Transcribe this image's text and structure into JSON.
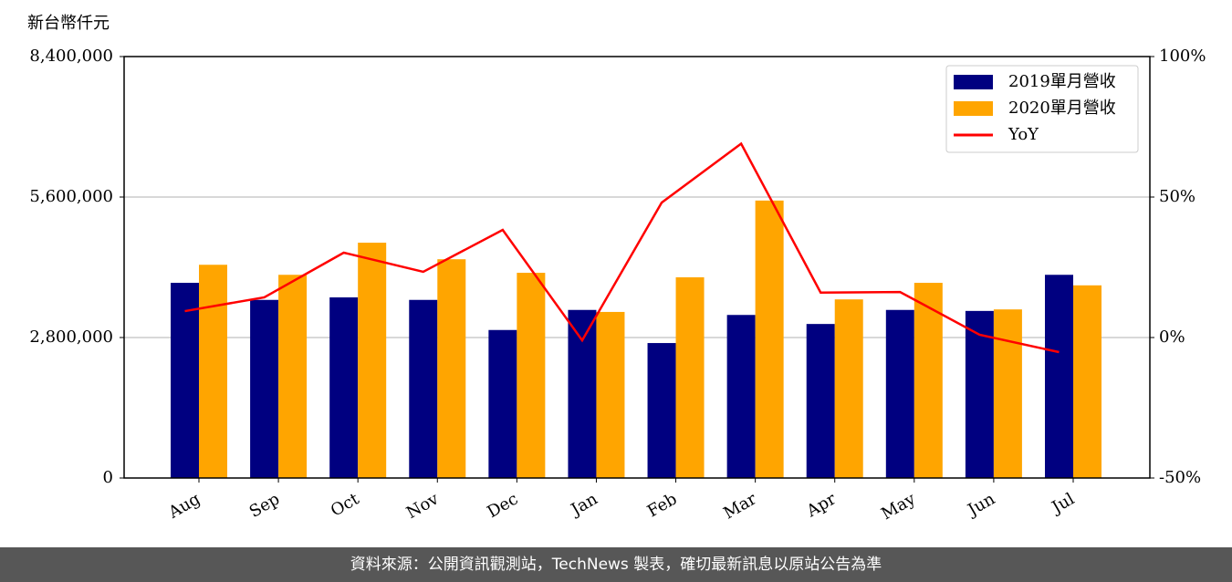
{
  "chart_data": {
    "type": "bar",
    "y_label": "新台幣仟元",
    "categories": [
      "Aug",
      "Sep",
      "Oct",
      "Nov",
      "Dec",
      "Jan",
      "Feb",
      "Mar",
      "Apr",
      "May",
      "Jun",
      "Jul"
    ],
    "series": [
      {
        "name": "2019單月營收",
        "color": "#000080",
        "values": [
          3890000,
          3550000,
          3600000,
          3550000,
          2950000,
          3350000,
          2690000,
          3250000,
          3070000,
          3350000,
          3330000,
          4050000
        ]
      },
      {
        "name": "2020單月營收",
        "color": "#ffa500",
        "values": [
          4250000,
          4050000,
          4690000,
          4360000,
          4090000,
          3310000,
          4000000,
          5530000,
          3560000,
          3890000,
          3360000,
          3840000
        ]
      },
      {
        "name": "YoY",
        "color": "#ff0000",
        "type": "line",
        "axis": "y2",
        "values": [
          9.4,
          14.3,
          30.2,
          23.4,
          38.3,
          -1,
          48,
          69,
          16,
          16.2,
          1,
          -5.2
        ]
      }
    ],
    "ylim": [
      0,
      8400000
    ],
    "yticks": [
      0,
      {
        "value": 2800000,
        "label": "2,800,000"
      },
      {
        "value": 5600000,
        "label": "5,600,000"
      },
      {
        "value": 8400000,
        "label": "8,400,000"
      }
    ],
    "y2lim": [
      -50,
      100
    ],
    "y2ticks": [
      {
        "value": -50,
        "label": "-50%"
      },
      {
        "value": 0,
        "label": "0%"
      },
      {
        "value": 50,
        "label": "50%"
      },
      {
        "value": 100,
        "label": "100%"
      }
    ],
    "grid": true,
    "legend": "upper right"
  },
  "footer": "資料來源：公開資訊觀測站，TechNews 製表，確切最新訊息以原站公告為準"
}
